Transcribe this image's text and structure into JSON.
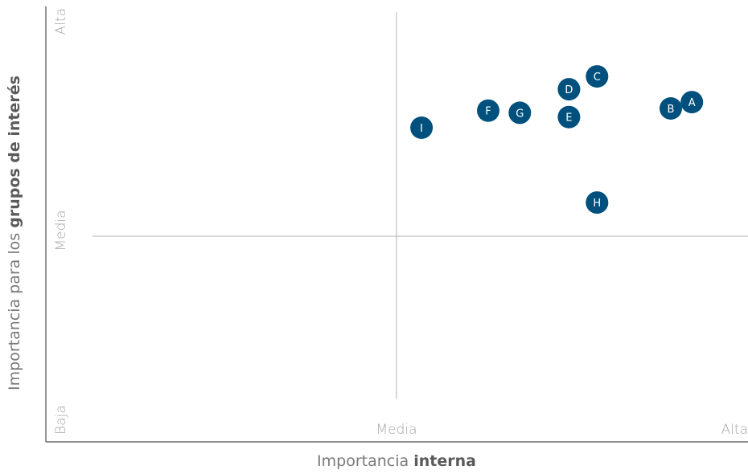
{
  "chart_data": {
    "type": "scatter",
    "xlabel": {
      "prefix": "Importancia ",
      "bold": "interna"
    },
    "ylabel": {
      "prefix": "Importancia para los ",
      "bold": "grupos de interés"
    },
    "x_ticks": [
      "Media",
      "Alta"
    ],
    "y_ticks": [
      "Baja",
      "Media",
      "Alta"
    ],
    "xlim": [
      0,
      2
    ],
    "ylim": [
      0,
      2
    ],
    "grid": false,
    "point_color": "#00507d",
    "points": [
      {
        "label": "A",
        "x": 1.84,
        "y": 1.59
      },
      {
        "label": "B",
        "x": 1.78,
        "y": 1.56
      },
      {
        "label": "C",
        "x": 1.57,
        "y": 1.71
      },
      {
        "label": "D",
        "x": 1.49,
        "y": 1.65
      },
      {
        "label": "E",
        "x": 1.49,
        "y": 1.52
      },
      {
        "label": "F",
        "x": 1.26,
        "y": 1.55
      },
      {
        "label": "G",
        "x": 1.35,
        "y": 1.54
      },
      {
        "label": "H",
        "x": 1.57,
        "y": 1.12
      },
      {
        "label": "I",
        "x": 1.07,
        "y": 1.47
      }
    ]
  }
}
